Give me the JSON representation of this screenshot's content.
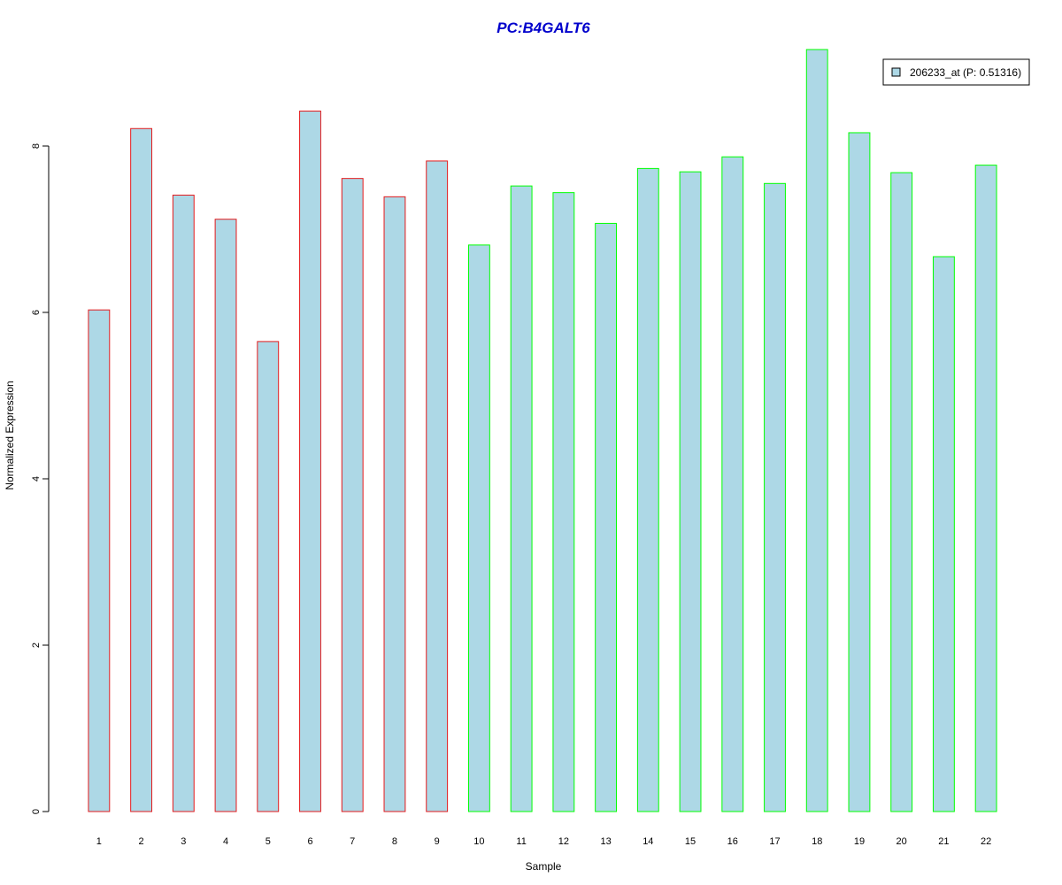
{
  "chart_data": {
    "type": "bar",
    "title": "PC:B4GALT6",
    "title_color": "#0000CC",
    "xlabel": "Sample",
    "ylabel": "Normalized Expression",
    "categories": [
      "1",
      "2",
      "3",
      "4",
      "5",
      "6",
      "7",
      "8",
      "9",
      "10",
      "11",
      "12",
      "13",
      "14",
      "15",
      "16",
      "17",
      "18",
      "19",
      "20",
      "21",
      "22"
    ],
    "values": [
      6.03,
      8.21,
      7.41,
      7.12,
      5.65,
      8.42,
      7.61,
      7.39,
      7.82,
      6.81,
      7.52,
      7.44,
      7.07,
      7.73,
      7.69,
      7.87,
      7.55,
      9.16,
      8.16,
      7.68,
      6.67,
      7.77
    ],
    "groups": [
      "a",
      "a",
      "a",
      "a",
      "a",
      "a",
      "a",
      "a",
      "a",
      "b",
      "b",
      "b",
      "b",
      "b",
      "b",
      "b",
      "b",
      "b",
      "b",
      "b",
      "b",
      "b"
    ],
    "group_colors": {
      "a": "#E41A1C",
      "b": "#00FF00"
    },
    "bar_fill": "#ADD8E6",
    "ylim": [
      0,
      9.2
    ],
    "yticks": [
      0,
      2,
      4,
      6,
      8
    ],
    "grid": false,
    "legend": {
      "position": "top-right",
      "entries": [
        {
          "label": "206233_at (P: 0.51316)",
          "fill": "#ADD8E6"
        }
      ]
    }
  }
}
